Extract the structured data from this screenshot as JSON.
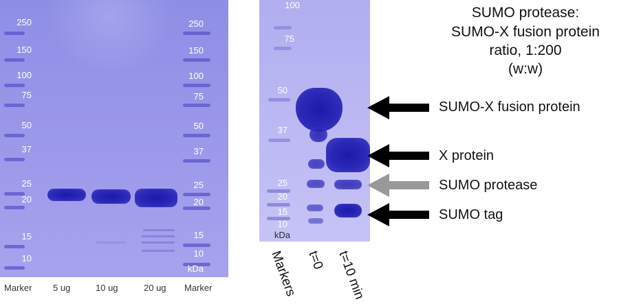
{
  "gel_left": {
    "marker_left": [
      "250",
      "150",
      "100",
      "75",
      "50",
      "37",
      "25",
      "20",
      "15",
      "10"
    ],
    "marker_right": [
      "250",
      "150",
      "100",
      "75",
      "50",
      "37",
      "25",
      "20",
      "15",
      "10",
      "kDa"
    ],
    "lane_labels": [
      "Marker",
      "5 ug",
      "10 ug",
      "20 ug",
      "Marker"
    ]
  },
  "gel_right": {
    "marker_labels": [
      "100",
      "75",
      "50",
      "37",
      "25",
      "20",
      "15",
      "10",
      "kDa"
    ],
    "lane_labels": [
      "Markers",
      "t=0",
      "t=10 min"
    ]
  },
  "title": {
    "line1": "SUMO protease:",
    "line2": "SUMO-X fusion protein",
    "line3": "ratio, 1:200",
    "line4": "(w:w)"
  },
  "annotations": {
    "fusion": "SUMO-X fusion protein",
    "x_protein": "X protein",
    "protease": "SUMO protease",
    "tag": "SUMO tag"
  },
  "colors": {
    "gel_left": "#9a97ea",
    "gel_right": "#bbb8f3",
    "band": "#2b27b7",
    "arrow_black": "#000000",
    "arrow_gray": "#999999"
  },
  "icons": [
    "arrow-left-icon"
  ]
}
